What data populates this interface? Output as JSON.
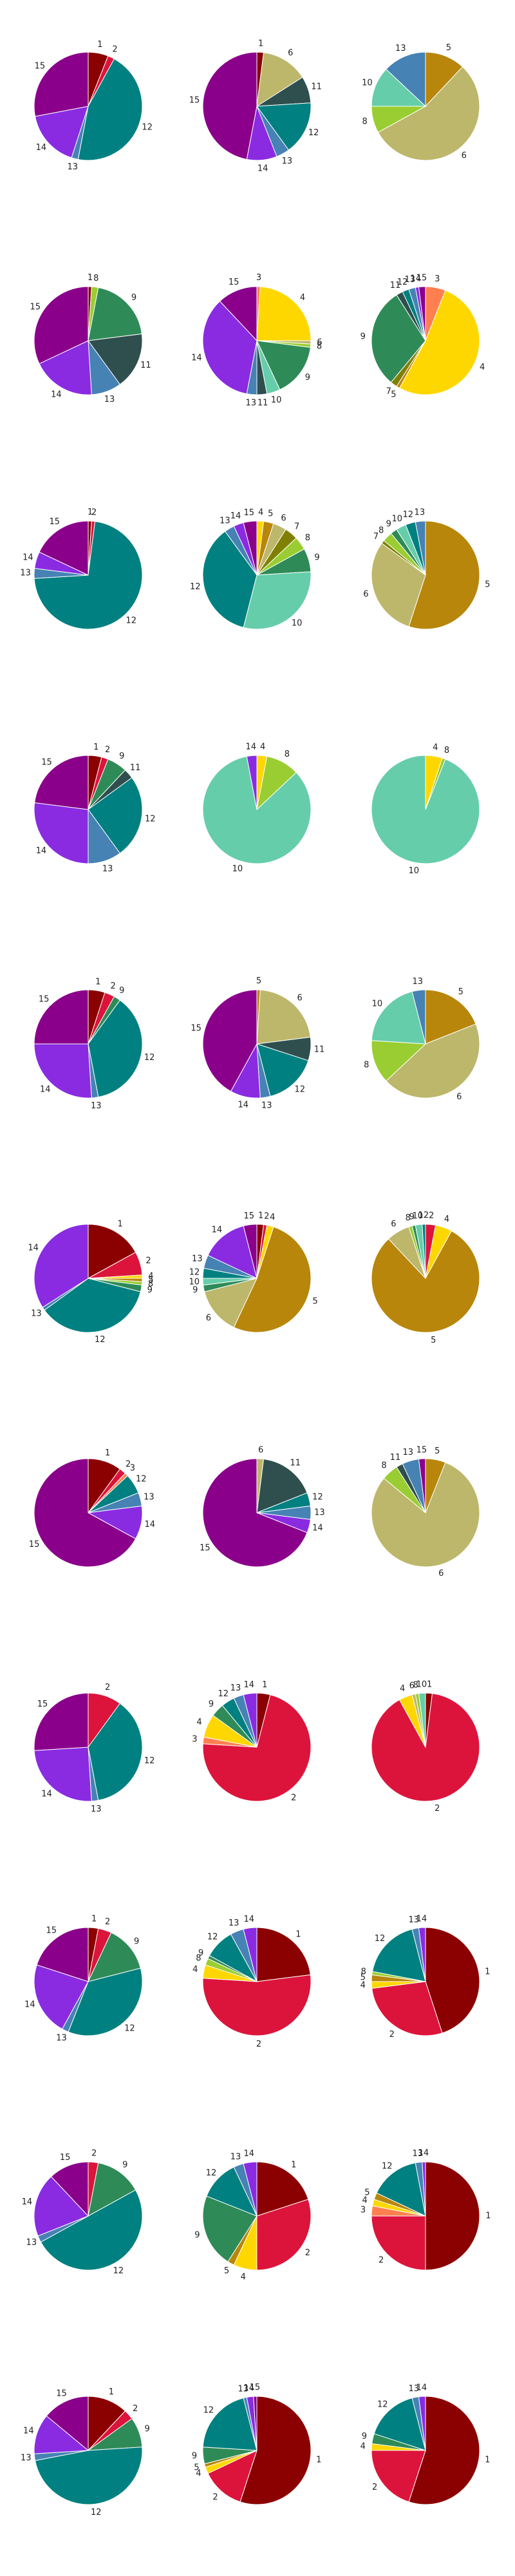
{
  "chart_data": [
    {
      "type": "pie",
      "categories": [
        "1",
        "2",
        "12",
        "13",
        "14",
        "15"
      ],
      "values": [
        6,
        2,
        45,
        2,
        17,
        28
      ],
      "colors": [
        "#8b0000",
        "#dc143c",
        "#008080",
        "#4682b4",
        "#8a2be2",
        "#8b008b"
      ]
    },
    {
      "type": "pie",
      "categories": [
        "1",
        "6",
        "11",
        "12",
        "13",
        "14",
        "15"
      ],
      "values": [
        2,
        14,
        8,
        16,
        4,
        9,
        47
      ],
      "colors": [
        "#8b0000",
        "#bdb76b",
        "#2f4f4f",
        "#008080",
        "#4682b4",
        "#8a2be2",
        "#8b008b"
      ]
    },
    {
      "type": "pie",
      "categories": [
        "5",
        "6",
        "8",
        "10",
        "13"
      ],
      "values": [
        12,
        55,
        8,
        12,
        13
      ],
      "colors": [
        "#b8860b",
        "#bdb76b",
        "#9acd32",
        "#66cdaa",
        "#4682b4"
      ]
    },
    {
      "type": "pie",
      "categories": [
        "1",
        "8",
        "9",
        "11",
        "13",
        "14",
        "15"
      ],
      "values": [
        1,
        2,
        20,
        17,
        9,
        19,
        32
      ],
      "colors": [
        "#8b0000",
        "#9acd32",
        "#2e8b57",
        "#2f4f4f",
        "#4682b4",
        "#8a2be2",
        "#8b008b"
      ]
    },
    {
      "type": "pie",
      "categories": [
        "3",
        "4",
        "6",
        "8",
        "9",
        "10",
        "11",
        "13",
        "14",
        "15"
      ],
      "values": [
        1,
        24,
        1,
        1,
        16,
        4,
        3,
        3,
        35,
        12
      ],
      "colors": [
        "#ff7f50",
        "#ffd700",
        "#bdb76b",
        "#9acd32",
        "#2e8b57",
        "#66cdaa",
        "#2f4f4f",
        "#4682b4",
        "#8a2be2",
        "#8b008b"
      ]
    },
    {
      "type": "pie",
      "categories": [
        "3",
        "4",
        "5",
        "7",
        "9",
        "11",
        "12",
        "13",
        "14",
        "15"
      ],
      "values": [
        6,
        52,
        1,
        2,
        30,
        2,
        2,
        2,
        1,
        2
      ],
      "colors": [
        "#ff7f50",
        "#ffd700",
        "#b8860b",
        "#808000",
        "#2e8b57",
        "#2f4f4f",
        "#008080",
        "#4682b4",
        "#8a2be2",
        "#8b008b"
      ]
    },
    {
      "type": "pie",
      "categories": [
        "1",
        "2",
        "12",
        "13",
        "14",
        "15"
      ],
      "values": [
        1,
        1,
        72,
        3,
        5,
        18
      ],
      "colors": [
        "#8b0000",
        "#dc143c",
        "#008080",
        "#4682b4",
        "#8a2be2",
        "#8b008b"
      ]
    },
    {
      "type": "pie",
      "categories": [
        "4",
        "5",
        "6",
        "7",
        "8",
        "9",
        "10",
        "12",
        "13",
        "14",
        "15"
      ],
      "values": [
        2,
        3,
        4,
        4,
        4,
        7,
        30,
        36,
        3,
        3,
        4
      ],
      "colors": [
        "#ffd700",
        "#b8860b",
        "#bdb76b",
        "#808000",
        "#9acd32",
        "#2e8b57",
        "#66cdaa",
        "#008080",
        "#4682b4",
        "#8a2be2",
        "#8b008b"
      ]
    },
    {
      "type": "pie",
      "categories": [
        "5",
        "6",
        "7",
        "8",
        "9",
        "10",
        "12",
        "13"
      ],
      "values": [
        55,
        30,
        1,
        3,
        2,
        3,
        3,
        3
      ],
      "colors": [
        "#b8860b",
        "#bdb76b",
        "#808000",
        "#9acd32",
        "#2e8b57",
        "#66cdaa",
        "#008080",
        "#4682b4"
      ]
    },
    {
      "type": "pie",
      "categories": [
        "1",
        "2",
        "9",
        "11",
        "12",
        "13",
        "14",
        "15"
      ],
      "values": [
        4,
        2,
        6,
        3,
        25,
        10,
        27,
        23
      ],
      "colors": [
        "#8b0000",
        "#dc143c",
        "#2e8b57",
        "#2f4f4f",
        "#008080",
        "#4682b4",
        "#8a2be2",
        "#8b008b"
      ]
    },
    {
      "type": "pie",
      "categories": [
        "4",
        "8",
        "10",
        "14"
      ],
      "values": [
        3,
        10,
        84,
        3
      ],
      "colors": [
        "#ffd700",
        "#9acd32",
        "#66cdaa",
        "#8a2be2"
      ]
    },
    {
      "type": "pie",
      "categories": [
        "4",
        "8",
        "10"
      ],
      "values": [
        5,
        1,
        94
      ],
      "colors": [
        "#ffd700",
        "#9acd32",
        "#66cdaa"
      ]
    },
    {
      "type": "pie",
      "categories": [
        "1",
        "2",
        "9",
        "12",
        "13",
        "14",
        "15"
      ],
      "values": [
        5,
        3,
        2,
        37,
        2,
        26,
        25
      ],
      "colors": [
        "#8b0000",
        "#dc143c",
        "#2e8b57",
        "#008080",
        "#4682b4",
        "#8a2be2",
        "#8b008b"
      ]
    },
    {
      "type": "pie",
      "categories": [
        "5",
        "6",
        "11",
        "12",
        "13",
        "14",
        "15"
      ],
      "values": [
        1,
        22,
        7,
        16,
        3,
        9,
        42
      ],
      "colors": [
        "#b8860b",
        "#bdb76b",
        "#2f4f4f",
        "#008080",
        "#4682b4",
        "#8a2be2",
        "#8b008b"
      ]
    },
    {
      "type": "pie",
      "categories": [
        "5",
        "6",
        "8",
        "10",
        "13"
      ],
      "values": [
        19,
        44,
        13,
        20,
        4
      ],
      "colors": [
        "#b8860b",
        "#bdb76b",
        "#9acd32",
        "#66cdaa",
        "#4682b4"
      ]
    },
    {
      "type": "pie",
      "categories": [
        "1",
        "2",
        "4",
        "5",
        "8",
        "9",
        "12",
        "13",
        "14"
      ],
      "values": [
        17,
        7,
        1,
        1,
        1,
        2,
        36,
        1,
        34
      ],
      "colors": [
        "#8b0000",
        "#dc143c",
        "#ffd700",
        "#b8860b",
        "#9acd32",
        "#2e8b57",
        "#008080",
        "#4682b4",
        "#8a2be2"
      ]
    },
    {
      "type": "pie",
      "categories": [
        "1",
        "2",
        "4",
        "5",
        "6",
        "9",
        "10",
        "12",
        "13",
        "14",
        "15"
      ],
      "values": [
        2,
        1,
        2,
        52,
        14,
        2,
        2,
        3,
        4,
        14,
        4
      ],
      "colors": [
        "#8b0000",
        "#dc143c",
        "#ffd700",
        "#b8860b",
        "#bdb76b",
        "#2e8b57",
        "#66cdaa",
        "#008080",
        "#4682b4",
        "#8a2be2",
        "#8b008b"
      ]
    },
    {
      "type": "pie",
      "categories": [
        "2",
        "4",
        "5",
        "6",
        "8",
        "9",
        "10",
        "12"
      ],
      "values": [
        3,
        5,
        80,
        7,
        1,
        1,
        2,
        1
      ],
      "colors": [
        "#dc143c",
        "#ffd700",
        "#b8860b",
        "#bdb76b",
        "#9acd32",
        "#2e8b57",
        "#66cdaa",
        "#008080"
      ]
    },
    {
      "type": "pie",
      "categories": [
        "1",
        "2",
        "3",
        "12",
        "13",
        "14",
        "15"
      ],
      "values": [
        10,
        2,
        1,
        6,
        4,
        10,
        67
      ],
      "colors": [
        "#8b0000",
        "#dc143c",
        "#ff7f50",
        "#008080",
        "#4682b4",
        "#8a2be2",
        "#8b008b"
      ]
    },
    {
      "type": "pie",
      "categories": [
        "6",
        "11",
        "12",
        "13",
        "14",
        "15"
      ],
      "values": [
        2,
        17,
        4,
        4,
        4,
        69
      ],
      "colors": [
        "#bdb76b",
        "#2f4f4f",
        "#008080",
        "#4682b4",
        "#8a2be2",
        "#8b008b"
      ]
    },
    {
      "type": "pie",
      "categories": [
        "5",
        "6",
        "8",
        "11",
        "13",
        "15"
      ],
      "values": [
        6,
        80,
        5,
        2,
        5,
        2
      ],
      "colors": [
        "#b8860b",
        "#bdb76b",
        "#9acd32",
        "#2f4f4f",
        "#4682b4",
        "#8b008b"
      ]
    },
    {
      "type": "pie",
      "categories": [
        "2",
        "12",
        "13",
        "14",
        "15"
      ],
      "values": [
        10,
        37,
        2,
        25,
        26
      ],
      "colors": [
        "#dc143c",
        "#008080",
        "#4682b4",
        "#8a2be2",
        "#8b008b"
      ]
    },
    {
      "type": "pie",
      "categories": [
        "1",
        "2",
        "3",
        "4",
        "9",
        "12",
        "13",
        "14"
      ],
      "values": [
        4,
        72,
        2,
        7,
        4,
        4,
        3,
        4
      ],
      "colors": [
        "#8b0000",
        "#dc143c",
        "#ff7f50",
        "#ffd700",
        "#2e8b57",
        "#008080",
        "#4682b4",
        "#8a2be2"
      ]
    },
    {
      "type": "pie",
      "categories": [
        "1",
        "2",
        "4",
        "6",
        "8",
        "10"
      ],
      "values": [
        2,
        90,
        4,
        1,
        1,
        2
      ],
      "colors": [
        "#8b0000",
        "#dc143c",
        "#ffd700",
        "#bdb76b",
        "#9acd32",
        "#66cdaa"
      ]
    },
    {
      "type": "pie",
      "categories": [
        "1",
        "2",
        "9",
        "12",
        "13",
        "14",
        "15"
      ],
      "values": [
        3,
        4,
        14,
        35,
        2,
        22,
        20
      ],
      "colors": [
        "#8b0000",
        "#dc143c",
        "#2e8b57",
        "#008080",
        "#4682b4",
        "#8a2be2",
        "#8b008b"
      ]
    },
    {
      "type": "pie",
      "categories": [
        "1",
        "2",
        "4",
        "8",
        "9",
        "12",
        "13",
        "14"
      ],
      "values": [
        23,
        53,
        4,
        2,
        1,
        9,
        4,
        4
      ],
      "colors": [
        "#8b0000",
        "#dc143c",
        "#ffd700",
        "#9acd32",
        "#2e8b57",
        "#008080",
        "#4682b4",
        "#8a2be2"
      ]
    },
    {
      "type": "pie",
      "categories": [
        "1",
        "2",
        "4",
        "5",
        "8",
        "12",
        "13",
        "14"
      ],
      "values": [
        45,
        28,
        2,
        2,
        1,
        18,
        2,
        2
      ],
      "colors": [
        "#8b0000",
        "#dc143c",
        "#ffd700",
        "#b8860b",
        "#9acd32",
        "#008080",
        "#4682b4",
        "#8a2be2"
      ]
    },
    {
      "type": "pie",
      "categories": [
        "2",
        "9",
        "12",
        "13",
        "14",
        "15"
      ],
      "values": [
        3,
        14,
        50,
        2,
        19,
        12
      ],
      "colors": [
        "#dc143c",
        "#2e8b57",
        "#008080",
        "#4682b4",
        "#8a2be2",
        "#8b008b"
      ]
    },
    {
      "type": "pie",
      "categories": [
        "1",
        "2",
        "4",
        "5",
        "9",
        "12",
        "13",
        "14"
      ],
      "values": [
        20,
        30,
        7,
        2,
        22,
        12,
        3,
        4
      ],
      "colors": [
        "#8b0000",
        "#dc143c",
        "#ffd700",
        "#b8860b",
        "#2e8b57",
        "#008080",
        "#4682b4",
        "#8a2be2"
      ]
    },
    {
      "type": "pie",
      "categories": [
        "1",
        "2",
        "3",
        "4",
        "5",
        "12",
        "13",
        "14"
      ],
      "values": [
        50,
        25,
        3,
        2,
        2,
        15,
        2,
        1
      ],
      "colors": [
        "#8b0000",
        "#dc143c",
        "#ff7f50",
        "#ffd700",
        "#b8860b",
        "#008080",
        "#4682b4",
        "#8a2be2"
      ]
    },
    {
      "type": "pie",
      "categories": [
        "1",
        "2",
        "9",
        "12",
        "13",
        "14",
        "15"
      ],
      "values": [
        12,
        3,
        9,
        48,
        2,
        12,
        14
      ],
      "colors": [
        "#8b0000",
        "#dc143c",
        "#2e8b57",
        "#008080",
        "#4682b4",
        "#8a2be2",
        "#8b008b"
      ]
    },
    {
      "type": "pie",
      "categories": [
        "1",
        "2",
        "4",
        "5",
        "9",
        "12",
        "13",
        "14",
        "15"
      ],
      "values": [
        55,
        13,
        2,
        1,
        5,
        20,
        1,
        2,
        1
      ],
      "colors": [
        "#8b0000",
        "#dc143c",
        "#ffd700",
        "#b8860b",
        "#2e8b57",
        "#008080",
        "#4682b4",
        "#8a2be2",
        "#8b008b"
      ]
    },
    {
      "type": "pie",
      "categories": [
        "1",
        "2",
        "4",
        "9",
        "12",
        "13",
        "14"
      ],
      "values": [
        55,
        20,
        2,
        3,
        16,
        2,
        2
      ],
      "colors": [
        "#8b0000",
        "#dc143c",
        "#ffd700",
        "#2e8b57",
        "#008080",
        "#4682b4",
        "#8a2be2"
      ]
    }
  ]
}
